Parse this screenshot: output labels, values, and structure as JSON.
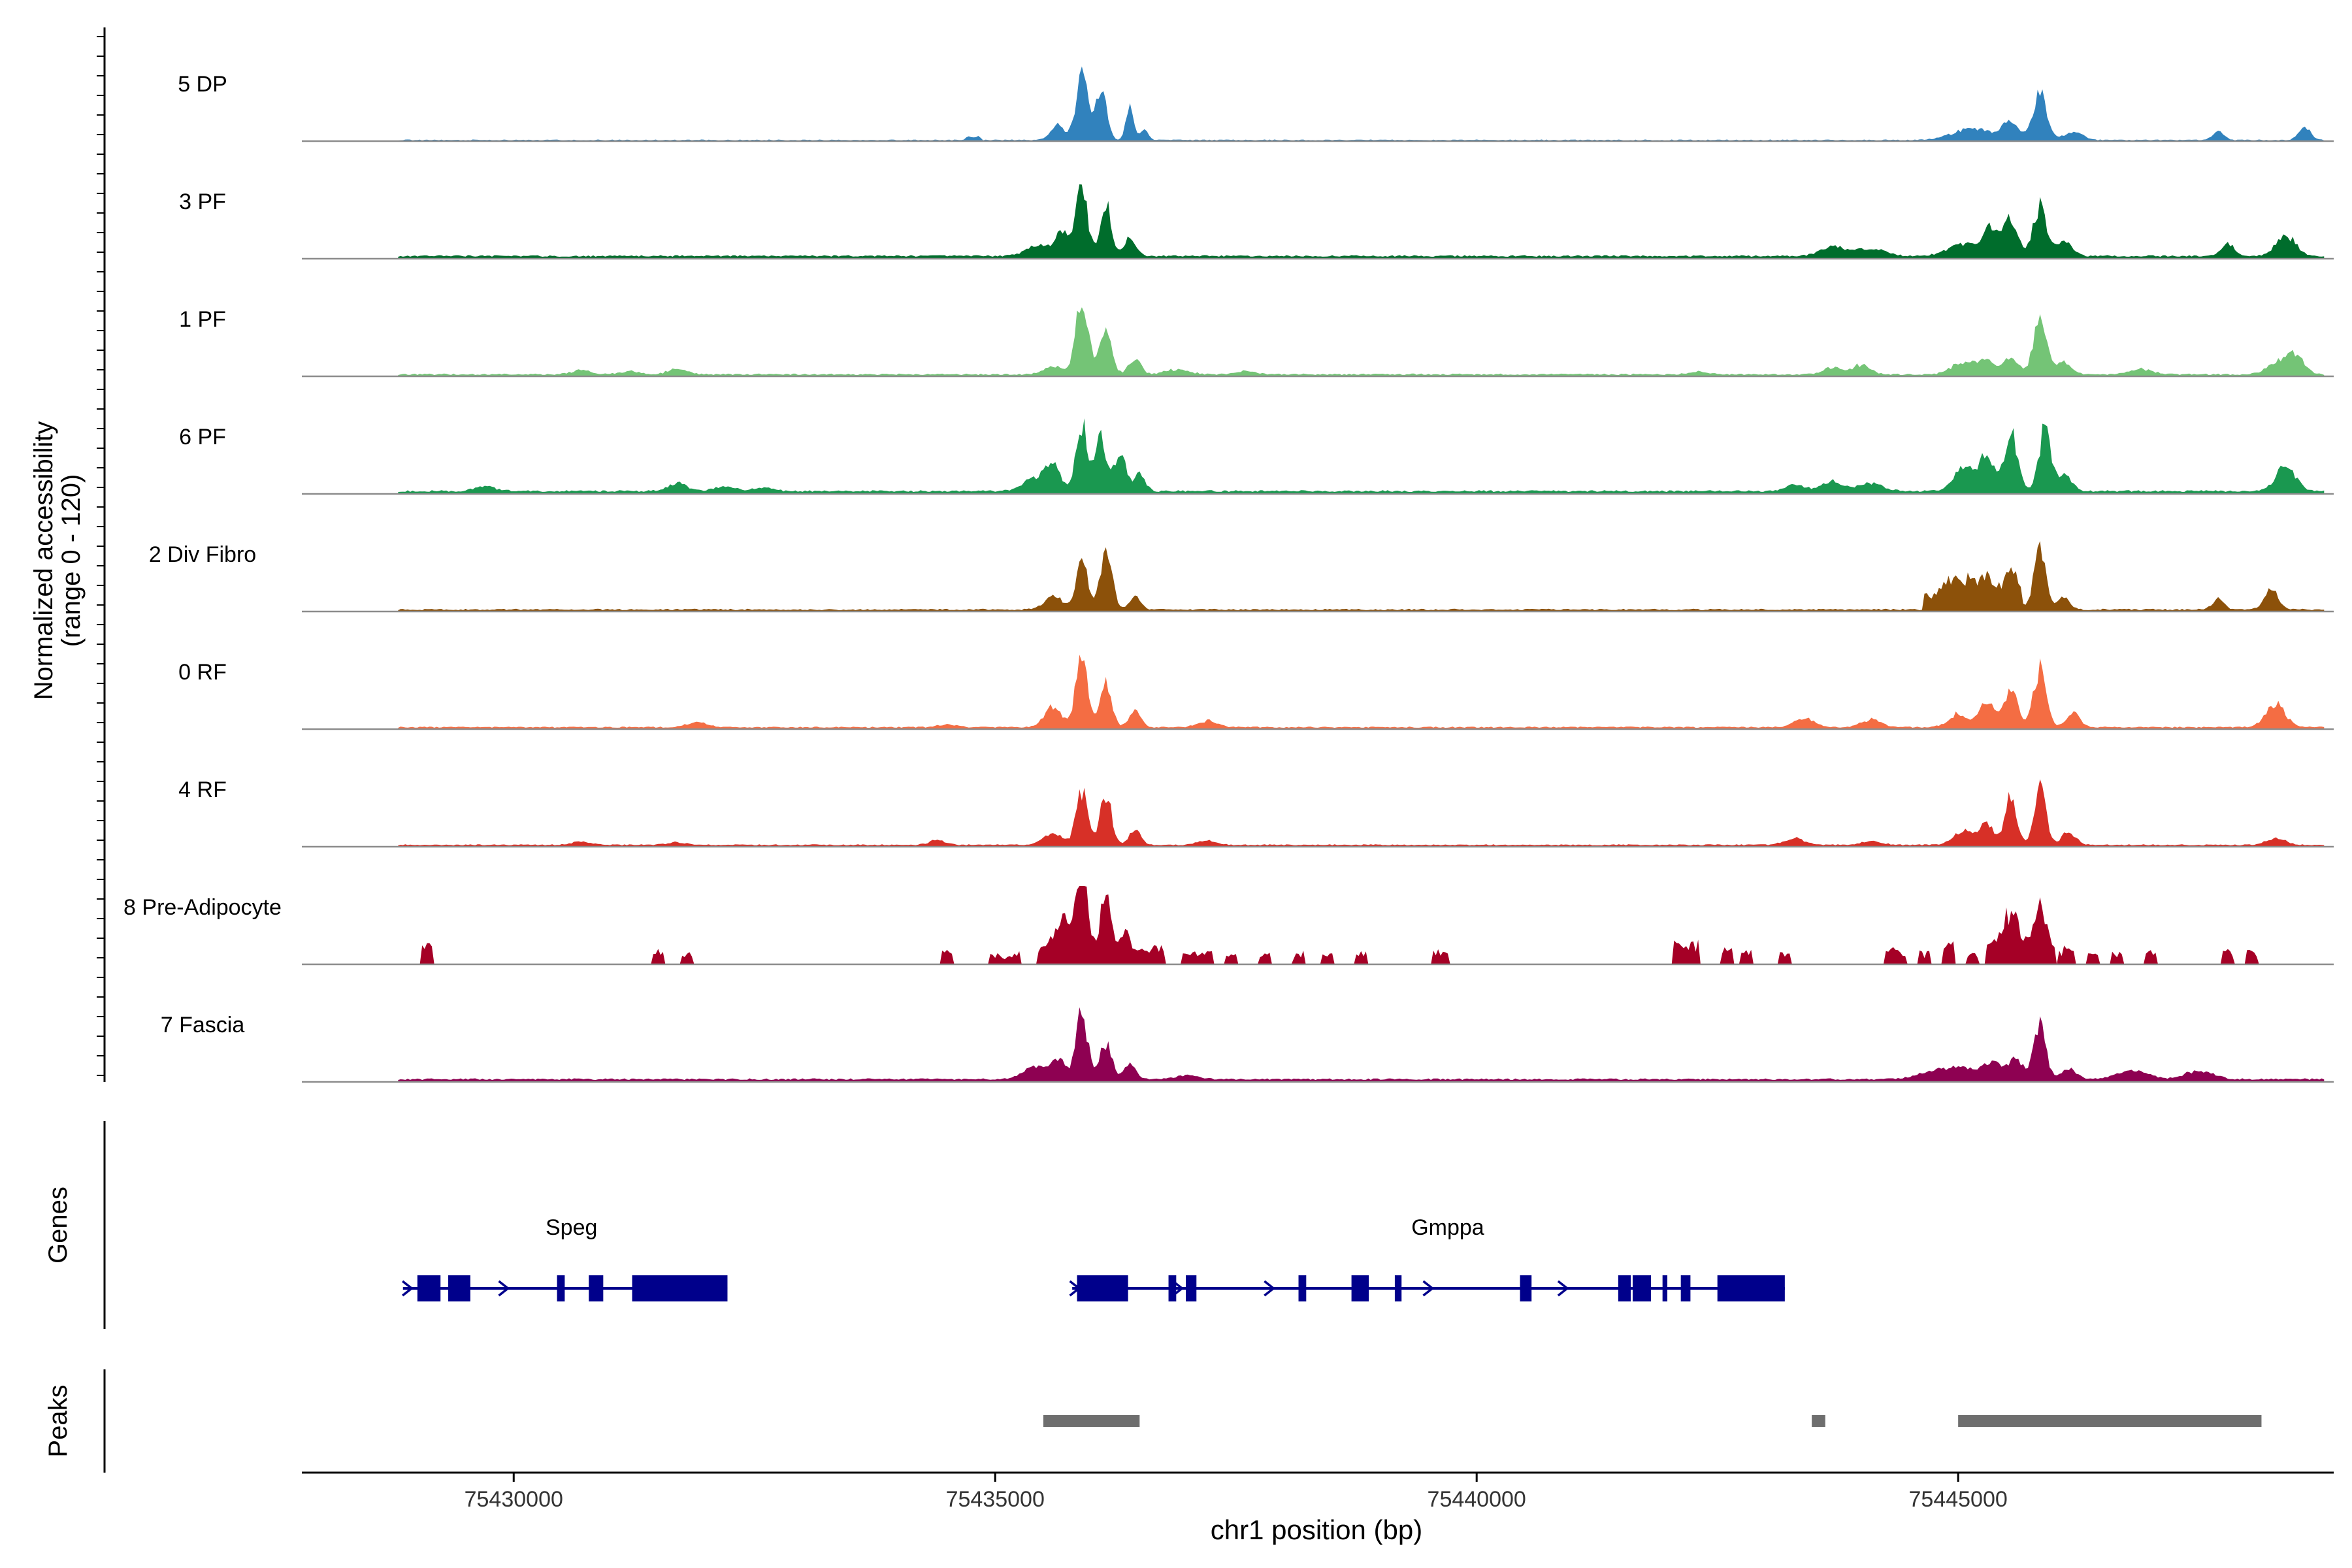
{
  "chart_data": {
    "type": "area",
    "title": "",
    "ylabel_line1": "Normalized accessibility",
    "ylabel_line2": "(range 0 - 120)",
    "xlabel": "chr1 position (bp)",
    "genes_label": "Genes",
    "peaks_label": "Peaks",
    "xlim": [
      75427800,
      75448900
    ],
    "ylim": [
      0,
      120
    ],
    "x_ticks": [
      {
        "value": 75430000,
        "label": "75430000"
      },
      {
        "value": 75435000,
        "label": "75435000"
      },
      {
        "value": 75440000,
        "label": "75440000"
      },
      {
        "value": 75445000,
        "label": "75445000"
      }
    ],
    "track_start": 75428800,
    "track_end": 75448800,
    "bin_bp": 25,
    "series": [
      {
        "name": "5 DP",
        "color": "#3182bd",
        "baseline": 1,
        "noise": 1.5,
        "seed": 11,
        "peaks": [
          [
            75435650,
            22,
            70
          ],
          [
            75435900,
            105,
            60
          ],
          [
            75436100,
            85,
            55
          ],
          [
            75436400,
            48,
            40
          ],
          [
            75436550,
            15,
            40
          ],
          [
            75445150,
            18,
            200
          ],
          [
            75445550,
            28,
            80
          ],
          [
            75445850,
            75,
            70
          ],
          [
            75446200,
            12,
            100
          ],
          [
            75447700,
            12,
            60
          ],
          [
            75448600,
            20,
            60
          ]
        ],
        "islands": [
          [
            75434700,
            75434850,
            6
          ]
        ]
      },
      {
        "name": "3 PF",
        "color": "#006d2c",
        "baseline": 3,
        "noise": 2.5,
        "seed": 23,
        "peaks": [
          [
            75435450,
            18,
            120
          ],
          [
            75435700,
            35,
            70
          ],
          [
            75435900,
            100,
            60
          ],
          [
            75436150,
            80,
            55
          ],
          [
            75436400,
            28,
            60
          ],
          [
            75443700,
            15,
            120
          ],
          [
            75444000,
            10,
            100
          ],
          [
            75444200,
            8,
            100
          ],
          [
            75445050,
            20,
            150
          ],
          [
            75445350,
            45,
            80
          ],
          [
            75445550,
            55,
            70
          ],
          [
            75445850,
            75,
            70
          ],
          [
            75446100,
            22,
            80
          ],
          [
            75447800,
            18,
            70
          ],
          [
            75448400,
            32,
            100
          ]
        ],
        "islands": []
      },
      {
        "name": "1 PF",
        "color": "#74c476",
        "baseline": 2,
        "noise": 2.2,
        "seed": 37,
        "peaks": [
          [
            75430700,
            6,
            100
          ],
          [
            75431200,
            5,
            100
          ],
          [
            75431700,
            8,
            100
          ],
          [
            75435600,
            12,
            100
          ],
          [
            75435900,
            115,
            65
          ],
          [
            75436150,
            70,
            60
          ],
          [
            75436450,
            25,
            60
          ],
          [
            75436900,
            8,
            120
          ],
          [
            75437600,
            5,
            100
          ],
          [
            75442300,
            4,
            100
          ],
          [
            75443700,
            10,
            100
          ],
          [
            75444000,
            15,
            90
          ],
          [
            75445050,
            18,
            120
          ],
          [
            75445300,
            20,
            90
          ],
          [
            75445550,
            28,
            70
          ],
          [
            75445850,
            80,
            70
          ],
          [
            75446100,
            18,
            80
          ],
          [
            75446900,
            8,
            120
          ],
          [
            75448300,
            18,
            100
          ],
          [
            75448500,
            30,
            90
          ]
        ],
        "islands": []
      },
      {
        "name": "6 PF",
        "color": "#1a9850",
        "baseline": 3,
        "noise": 2.8,
        "seed": 41,
        "peaks": [
          [
            75429700,
            8,
            100
          ],
          [
            75431700,
            12,
            100
          ],
          [
            75432200,
            8,
            100
          ],
          [
            75432600,
            6,
            100
          ],
          [
            75435400,
            18,
            120
          ],
          [
            75435600,
            40,
            80
          ],
          [
            75435900,
            100,
            60
          ],
          [
            75436100,
            80,
            60
          ],
          [
            75436300,
            55,
            60
          ],
          [
            75436500,
            25,
            60
          ],
          [
            75443300,
            10,
            100
          ],
          [
            75443700,
            15,
            120
          ],
          [
            75444100,
            12,
            120
          ],
          [
            75445050,
            35,
            100
          ],
          [
            75445300,
            55,
            80
          ],
          [
            75445550,
            85,
            70
          ],
          [
            75445900,
            95,
            60
          ],
          [
            75446100,
            25,
            80
          ],
          [
            75448400,
            38,
            100
          ]
        ],
        "islands": []
      },
      {
        "name": "2 Div Fibro",
        "color": "#8c510a",
        "baseline": 2,
        "noise": 2.2,
        "seed": 53,
        "peaks": [
          [
            75435600,
            22,
            90
          ],
          [
            75435900,
            75,
            60
          ],
          [
            75436150,
            95,
            60
          ],
          [
            75436450,
            20,
            60
          ],
          [
            75444900,
            25,
            80
          ],
          [
            75445100,
            25,
            80
          ],
          [
            75445300,
            30,
            80
          ],
          [
            75445550,
            40,
            70
          ],
          [
            75445850,
            100,
            60
          ],
          [
            75446100,
            20,
            60
          ],
          [
            75447700,
            15,
            60
          ],
          [
            75448250,
            30,
            70
          ]
        ],
        "islands": [
          [
            75444650,
            75445650,
            22
          ]
        ]
      },
      {
        "name": "0 RF",
        "color": "#f46d43",
        "baseline": 2,
        "noise": 2.0,
        "seed": 67,
        "peaks": [
          [
            75431900,
            8,
            100
          ],
          [
            75434500,
            4,
            100
          ],
          [
            75435600,
            30,
            90
          ],
          [
            75435900,
            115,
            60
          ],
          [
            75436150,
            65,
            60
          ],
          [
            75436450,
            25,
            60
          ],
          [
            75437200,
            10,
            100
          ],
          [
            75443400,
            14,
            100
          ],
          [
            75444100,
            12,
            100
          ],
          [
            75445000,
            20,
            100
          ],
          [
            75445300,
            38,
            80
          ],
          [
            75445550,
            55,
            70
          ],
          [
            75445850,
            90,
            65
          ],
          [
            75446200,
            22,
            70
          ],
          [
            75448300,
            35,
            100
          ]
        ],
        "islands": []
      },
      {
        "name": "4 RF",
        "color": "#d73027",
        "baseline": 2,
        "noise": 1.8,
        "seed": 71,
        "peaks": [
          [
            75430700,
            5,
            100
          ],
          [
            75431700,
            4,
            100
          ],
          [
            75434400,
            8,
            80
          ],
          [
            75435600,
            18,
            100
          ],
          [
            75435900,
            80,
            60
          ],
          [
            75436150,
            75,
            60
          ],
          [
            75436450,
            22,
            60
          ],
          [
            75437200,
            6,
            100
          ],
          [
            75443300,
            10,
            100
          ],
          [
            75444100,
            6,
            100
          ],
          [
            75445050,
            22,
            100
          ],
          [
            75445300,
            30,
            80
          ],
          [
            75445550,
            75,
            60
          ],
          [
            75445850,
            95,
            60
          ],
          [
            75446150,
            20,
            70
          ],
          [
            75448300,
            10,
            100
          ]
        ],
        "islands": []
      },
      {
        "name": "8 Pre-Adipocyte",
        "color": "#a50026",
        "baseline": 0,
        "noise": 8,
        "seed": 89,
        "peaks": [
          [
            75435700,
            45,
            90
          ],
          [
            75435900,
            135,
            55
          ],
          [
            75436150,
            85,
            55
          ],
          [
            75436350,
            30,
            50
          ],
          [
            75445550,
            45,
            70
          ],
          [
            75445850,
            55,
            60
          ]
        ],
        "islands": [
          [
            75429050,
            75429150,
            28
          ],
          [
            75431450,
            75431550,
            14
          ],
          [
            75431750,
            75431850,
            14
          ],
          [
            75434450,
            75434550,
            16
          ],
          [
            75434950,
            75435250,
            12
          ],
          [
            75435450,
            75436750,
            20
          ],
          [
            75436950,
            75437250,
            14
          ],
          [
            75437400,
            75437500,
            10
          ],
          [
            75437750,
            75437850,
            12
          ],
          [
            75438100,
            75438200,
            12
          ],
          [
            75438400,
            75438500,
            14
          ],
          [
            75438750,
            75438850,
            14
          ],
          [
            75439550,
            75439700,
            16
          ],
          [
            75442050,
            75442300,
            28
          ],
          [
            75442550,
            75442650,
            22
          ],
          [
            75442750,
            75442850,
            14
          ],
          [
            75443150,
            75443250,
            12
          ],
          [
            75444250,
            75444450,
            18
          ],
          [
            75444600,
            75444700,
            14
          ],
          [
            75444850,
            75444950,
            28
          ],
          [
            75445100,
            75445200,
            12
          ],
          [
            75445300,
            75445500,
            30
          ],
          [
            75445500,
            75446000,
            30
          ],
          [
            75446050,
            75446200,
            20
          ],
          [
            75446350,
            75446450,
            14
          ],
          [
            75446600,
            75446700,
            12
          ],
          [
            75446950,
            75447050,
            14
          ],
          [
            75447750,
            75447850,
            16
          ],
          [
            75448000,
            75448100,
            16
          ]
        ]
      },
      {
        "name": "7 Fascia",
        "color": "#8e0152",
        "baseline": 3,
        "noise": 2.5,
        "seed": 97,
        "peaks": [
          [
            75435400,
            18,
            120
          ],
          [
            75435650,
            30,
            80
          ],
          [
            75435900,
            100,
            60
          ],
          [
            75436150,
            55,
            60
          ],
          [
            75436400,
            25,
            60
          ],
          [
            75437000,
            6,
            120
          ],
          [
            75444700,
            10,
            150
          ],
          [
            75445000,
            18,
            150
          ],
          [
            75445350,
            25,
            100
          ],
          [
            75445600,
            30,
            80
          ],
          [
            75445850,
            85,
            60
          ],
          [
            75446150,
            15,
            80
          ],
          [
            75446800,
            15,
            150
          ],
          [
            75447500,
            12,
            150
          ]
        ],
        "islands": []
      }
    ],
    "genes": [
      {
        "name": "Speg",
        "color": "#00008b",
        "start": 75428850,
        "end": 75432220,
        "label_x": 75430600,
        "exons": [
          [
            75429000,
            75429240
          ],
          [
            75429320,
            75429550
          ],
          [
            75430450,
            75430530
          ],
          [
            75430780,
            75430930
          ],
          [
            75431230,
            75432220
          ]
        ],
        "arrows": [
          75428900,
          75429900
        ]
      },
      {
        "name": "Gmppa",
        "color": "#00008b",
        "start": 75435800,
        "end": 75443200,
        "label_x": 75439700,
        "exons": [
          [
            75435850,
            75436380
          ],
          [
            75436800,
            75436880
          ],
          [
            75436980,
            75437090
          ],
          [
            75438150,
            75438230
          ],
          [
            75438700,
            75438880
          ],
          [
            75439150,
            75439220
          ],
          [
            75440450,
            75440570
          ],
          [
            75441470,
            75441600
          ],
          [
            75441620,
            75441810
          ],
          [
            75441930,
            75441980
          ],
          [
            75442120,
            75442220
          ],
          [
            75442500,
            75443200
          ]
        ],
        "arrows": [
          75435830,
          75436900,
          75437850,
          75439500,
          75440900
        ]
      }
    ],
    "peaks_track": [
      {
        "start": 75435500,
        "end": 75436500
      },
      {
        "start": 75443480,
        "end": 75443620
      },
      {
        "start": 75445000,
        "end": 75448150
      }
    ],
    "colors": {
      "peak_region": "#6e6e6e",
      "axis": "#000000",
      "baseline": "#8c8c8c"
    }
  }
}
